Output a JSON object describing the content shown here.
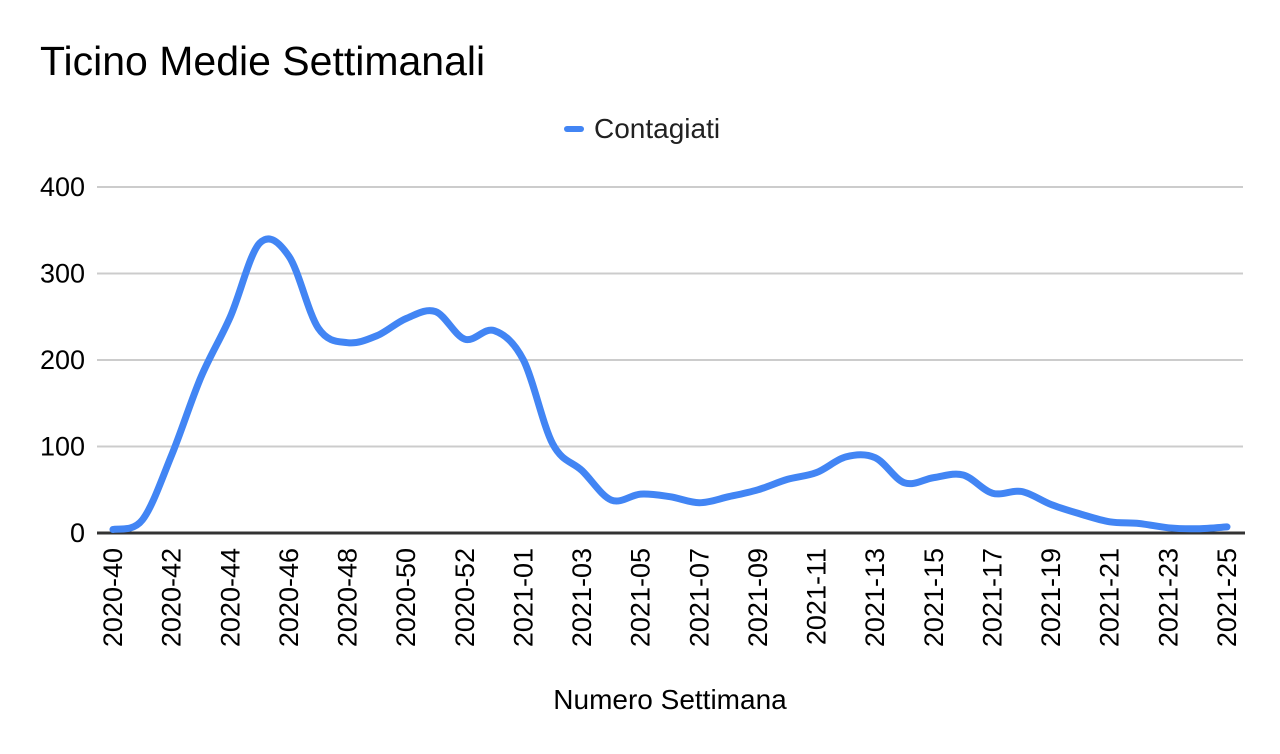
{
  "page": {
    "background_color": "#ffffff"
  },
  "header": {
    "title": "Ticino Medie Settimanali"
  },
  "legend": {
    "position": "top-center",
    "items": [
      {
        "label": "Contagiati",
        "swatch": "line-dash",
        "color": "#4285f4"
      }
    ]
  },
  "chart_data": {
    "type": "line",
    "title": "Ticino Medie Settimanali",
    "xlabel": "Numero Settimana",
    "ylabel": "",
    "smooth": true,
    "grid": "horizontal",
    "gridline_color": "#cccccc",
    "axis_line_color": "#333333",
    "tick_label_color": "#000000",
    "legend_position": "top-center",
    "ylim": [
      0,
      400
    ],
    "y_ticks": [
      0,
      100,
      200,
      300,
      400
    ],
    "x_tick_every": 2,
    "x_tick_labels": [
      "2020-40",
      "2020-42",
      "2020-44",
      "2020-46",
      "2020-48",
      "2020-50",
      "2020-52",
      "2021-01",
      "2021-03",
      "2021-05",
      "2021-07",
      "2021-09",
      "2021-11",
      "2021-13",
      "2021-15",
      "2021-17",
      "2021-19",
      "2021-21",
      "2021-23",
      "2021-25"
    ],
    "x_categories": [
      "2020-40",
      "2020-41",
      "2020-42",
      "2020-43",
      "2020-44",
      "2020-45",
      "2020-46",
      "2020-47",
      "2020-48",
      "2020-49",
      "2020-50",
      "2020-51",
      "2020-52",
      "2020-53",
      "2021-01",
      "2021-02",
      "2021-03",
      "2021-04",
      "2021-05",
      "2021-06",
      "2021-07",
      "2021-08",
      "2021-09",
      "2021-10",
      "2021-11",
      "2021-12",
      "2021-13",
      "2021-14",
      "2021-15",
      "2021-16",
      "2021-17",
      "2021-18",
      "2021-19",
      "2021-20",
      "2021-21",
      "2021-22",
      "2021-23",
      "2021-24",
      "2021-25"
    ],
    "series": [
      {
        "name": "Contagiati",
        "color": "#4285f4",
        "values": [
          4,
          15,
          90,
          180,
          250,
          335,
          320,
          237,
          220,
          228,
          248,
          256,
          224,
          234,
          200,
          103,
          72,
          38,
          45,
          42,
          35,
          42,
          50,
          62,
          70,
          88,
          87,
          58,
          64,
          67,
          46,
          48,
          33,
          22,
          13,
          11,
          6,
          5,
          7
        ]
      }
    ]
  }
}
